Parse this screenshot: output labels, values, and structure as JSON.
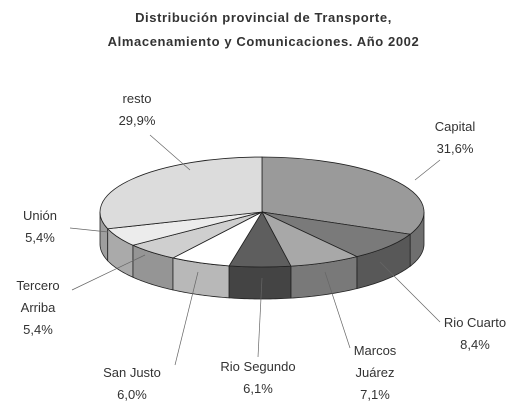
{
  "chart_data": {
    "type": "pie",
    "title": [
      "Distribución provincial de Transporte,",
      "Almacenamiento y Comunicaciones. Año 2002"
    ],
    "categories": [
      "Capital",
      "Rio Cuarto",
      "Marcos Juárez",
      "Rio Segundo",
      "San Justo",
      "Tercero Arriba",
      "Unión",
      "resto"
    ],
    "values": [
      31.6,
      8.4,
      7.1,
      6.1,
      6.0,
      5.4,
      5.4,
      29.9
    ],
    "value_labels": [
      "31,6%",
      "8,4%",
      "7,1%",
      "6,1%",
      "6,0%",
      "5,4%",
      "5,4%",
      "29,9%"
    ],
    "colors": [
      "#9a9a9a",
      "#7a7a7a",
      "#a8a8a8",
      "#5e5e5e",
      "#ffffff",
      "#cfcfcf",
      "#ececec",
      "#dcdcdc"
    ]
  }
}
